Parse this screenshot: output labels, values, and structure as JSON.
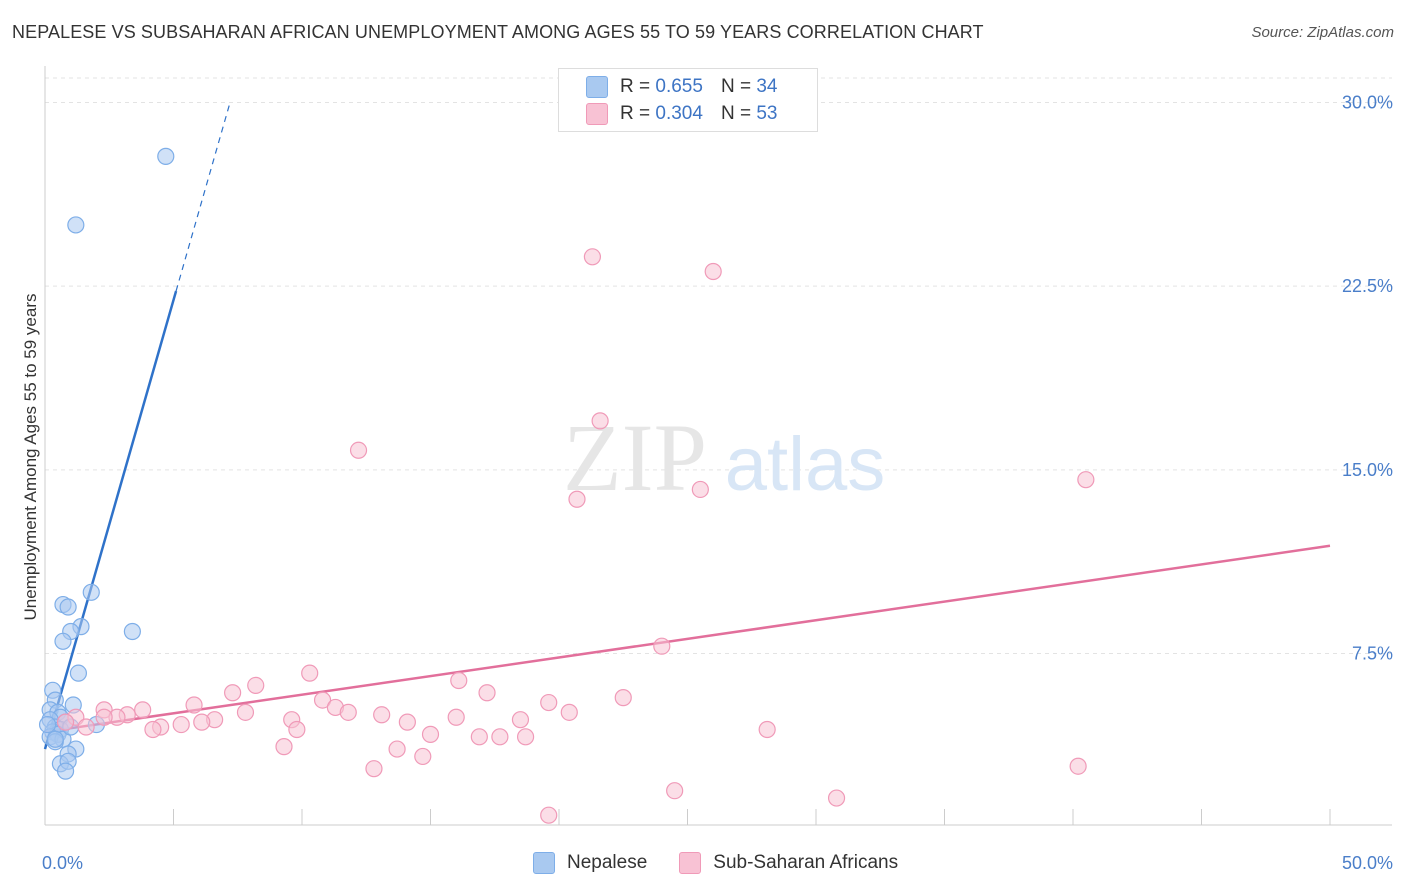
{
  "header": {
    "title": "NEPALESE VS SUBSAHARAN AFRICAN UNEMPLOYMENT AMONG AGES 55 TO 59 YEARS CORRELATION CHART",
    "source": "Source: ZipAtlas.com"
  },
  "watermark": {
    "zip": "ZIP",
    "atlas": "atlas"
  },
  "legend_top": {
    "rows": [
      {
        "r_label": "R =",
        "r_value": "0.655",
        "n_label": "N =",
        "n_value": "34"
      },
      {
        "r_label": "R =",
        "r_value": "0.304",
        "n_label": "N =",
        "n_value": "53"
      }
    ]
  },
  "legend_bottom": {
    "items": [
      "Nepalese",
      "Sub-Saharan Africans"
    ]
  },
  "chart_data": {
    "type": "scatter",
    "title": "NEPALESE VS SUBSAHARAN AFRICAN UNEMPLOYMENT AMONG AGES 55 TO 59 YEARS CORRELATION CHART",
    "xlabel": "",
    "ylabel": "Unemployment Among Ages 55 to 59 years",
    "xlim": [
      0,
      50
    ],
    "ylim": [
      0.5,
      31
    ],
    "x_tick_labels": [
      {
        "value": 0,
        "label": "0.0%"
      },
      {
        "value": 50,
        "label": "50.0%"
      }
    ],
    "x_minor_ticks": [
      0,
      5,
      10,
      15,
      20,
      25,
      30,
      35,
      40,
      45,
      50
    ],
    "y_ticks": [
      {
        "value": 7.5,
        "label": "7.5%"
      },
      {
        "value": 15.0,
        "label": "15.0%"
      },
      {
        "value": 22.5,
        "label": "22.5%"
      },
      {
        "value": 30.0,
        "label": "30.0%"
      }
    ],
    "grid": true,
    "series": [
      {
        "name": "Nepalese",
        "color": "#7eaee8",
        "fill": "#a9c9f0",
        "line_color": "#2f72c9",
        "R": 0.655,
        "N": 34,
        "trend": {
          "x0": 0.0,
          "y0": 3.6,
          "x1": 5.1,
          "y1": 22.3,
          "dash_to_x": 7.2,
          "dash_to_y": 30.0
        },
        "points": [
          [
            4.7,
            27.8
          ],
          [
            1.2,
            25.0
          ],
          [
            1.8,
            10.0
          ],
          [
            0.7,
            9.5
          ],
          [
            0.9,
            9.4
          ],
          [
            3.4,
            8.4
          ],
          [
            1.4,
            8.6
          ],
          [
            1.0,
            8.4
          ],
          [
            0.7,
            8.0
          ],
          [
            1.3,
            6.7
          ],
          [
            0.3,
            6.0
          ],
          [
            0.4,
            5.6
          ],
          [
            1.1,
            5.4
          ],
          [
            0.2,
            5.2
          ],
          [
            0.5,
            5.1
          ],
          [
            0.6,
            4.9
          ],
          [
            0.2,
            4.8
          ],
          [
            0.8,
            4.7
          ],
          [
            2.0,
            4.6
          ],
          [
            0.4,
            4.5
          ],
          [
            0.6,
            4.4
          ],
          [
            0.3,
            4.3
          ],
          [
            0.5,
            4.2
          ],
          [
            0.2,
            4.1
          ],
          [
            0.7,
            4.0
          ],
          [
            0.4,
            3.9
          ],
          [
            1.2,
            3.6
          ],
          [
            0.9,
            3.4
          ],
          [
            0.6,
            3.0
          ],
          [
            0.9,
            3.1
          ],
          [
            0.8,
            2.7
          ],
          [
            0.1,
            4.6
          ],
          [
            1.0,
            4.5
          ],
          [
            0.4,
            4.0
          ]
        ]
      },
      {
        "name": "Sub-Saharan Africans",
        "color": "#f09ab8",
        "fill": "#f8c2d4",
        "line_color": "#e26f9b",
        "R": 0.304,
        "N": 53,
        "trend": {
          "x0": 0.0,
          "y0": 4.3,
          "x1": 50.0,
          "y1": 11.9
        },
        "points": [
          [
            21.3,
            23.7
          ],
          [
            26.0,
            23.1
          ],
          [
            21.6,
            17.0
          ],
          [
            12.2,
            15.8
          ],
          [
            40.5,
            14.6
          ],
          [
            25.5,
            14.2
          ],
          [
            20.7,
            13.8
          ],
          [
            24.0,
            7.8
          ],
          [
            10.3,
            6.7
          ],
          [
            16.1,
            6.4
          ],
          [
            8.2,
            6.2
          ],
          [
            7.3,
            5.9
          ],
          [
            17.2,
            5.9
          ],
          [
            22.5,
            5.7
          ],
          [
            10.8,
            5.6
          ],
          [
            19.6,
            5.5
          ],
          [
            5.8,
            5.4
          ],
          [
            11.3,
            5.3
          ],
          [
            3.8,
            5.2
          ],
          [
            2.3,
            5.2
          ],
          [
            7.8,
            5.1
          ],
          [
            11.8,
            5.1
          ],
          [
            20.4,
            5.1
          ],
          [
            13.1,
            5.0
          ],
          [
            3.2,
            5.0
          ],
          [
            2.8,
            4.9
          ],
          [
            16.0,
            4.9
          ],
          [
            1.2,
            4.9
          ],
          [
            9.6,
            4.8
          ],
          [
            18.5,
            4.8
          ],
          [
            6.6,
            4.8
          ],
          [
            6.1,
            4.7
          ],
          [
            14.1,
            4.7
          ],
          [
            5.3,
            4.6
          ],
          [
            4.5,
            4.5
          ],
          [
            4.2,
            4.4
          ],
          [
            9.8,
            4.4
          ],
          [
            0.8,
            4.7
          ],
          [
            28.1,
            4.4
          ],
          [
            15.0,
            4.2
          ],
          [
            16.9,
            4.1
          ],
          [
            17.7,
            4.1
          ],
          [
            18.7,
            4.1
          ],
          [
            9.3,
            3.7
          ],
          [
            13.7,
            3.6
          ],
          [
            14.7,
            3.3
          ],
          [
            12.8,
            2.8
          ],
          [
            40.2,
            2.9
          ],
          [
            24.5,
            1.9
          ],
          [
            30.8,
            1.6
          ],
          [
            19.6,
            0.9
          ],
          [
            2.3,
            4.9
          ],
          [
            1.6,
            4.5
          ]
        ]
      }
    ]
  }
}
